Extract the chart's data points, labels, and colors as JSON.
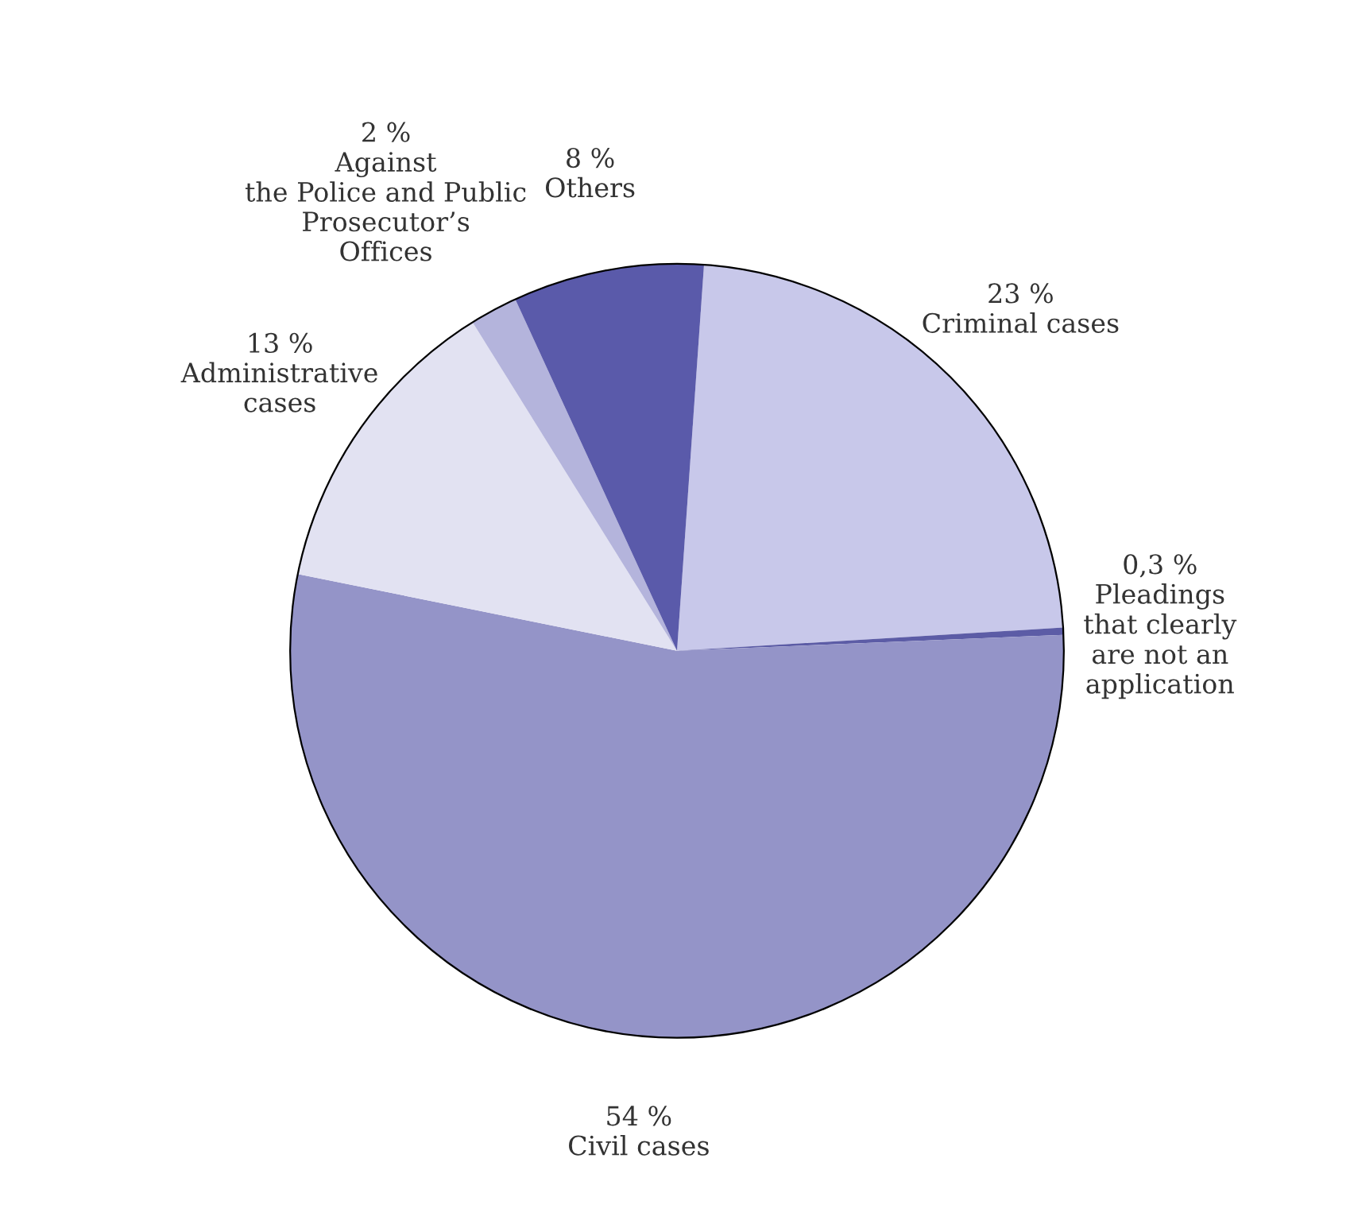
{
  "chart_data": {
    "type": "pie",
    "categories": [
      "Criminal cases",
      "Pleadings\nthat clearly\nare not an\napplication",
      "Civil cases",
      "Administrative\ncases",
      "Against\nthe Police and Public\nProsecutor’s\nOffices",
      "Others"
    ],
    "values": [
      23,
      0.3,
      54,
      13,
      2,
      8
    ],
    "value_labels": [
      "23 %",
      "0,3 %",
      "54 %",
      "13 %",
      "2 %",
      "8 %"
    ],
    "colors": [
      "#c8c8ea",
      "#5c5ca6",
      "#9494c8",
      "#e2e2f2",
      "#b4b4dc",
      "#5a5aaa"
    ]
  }
}
